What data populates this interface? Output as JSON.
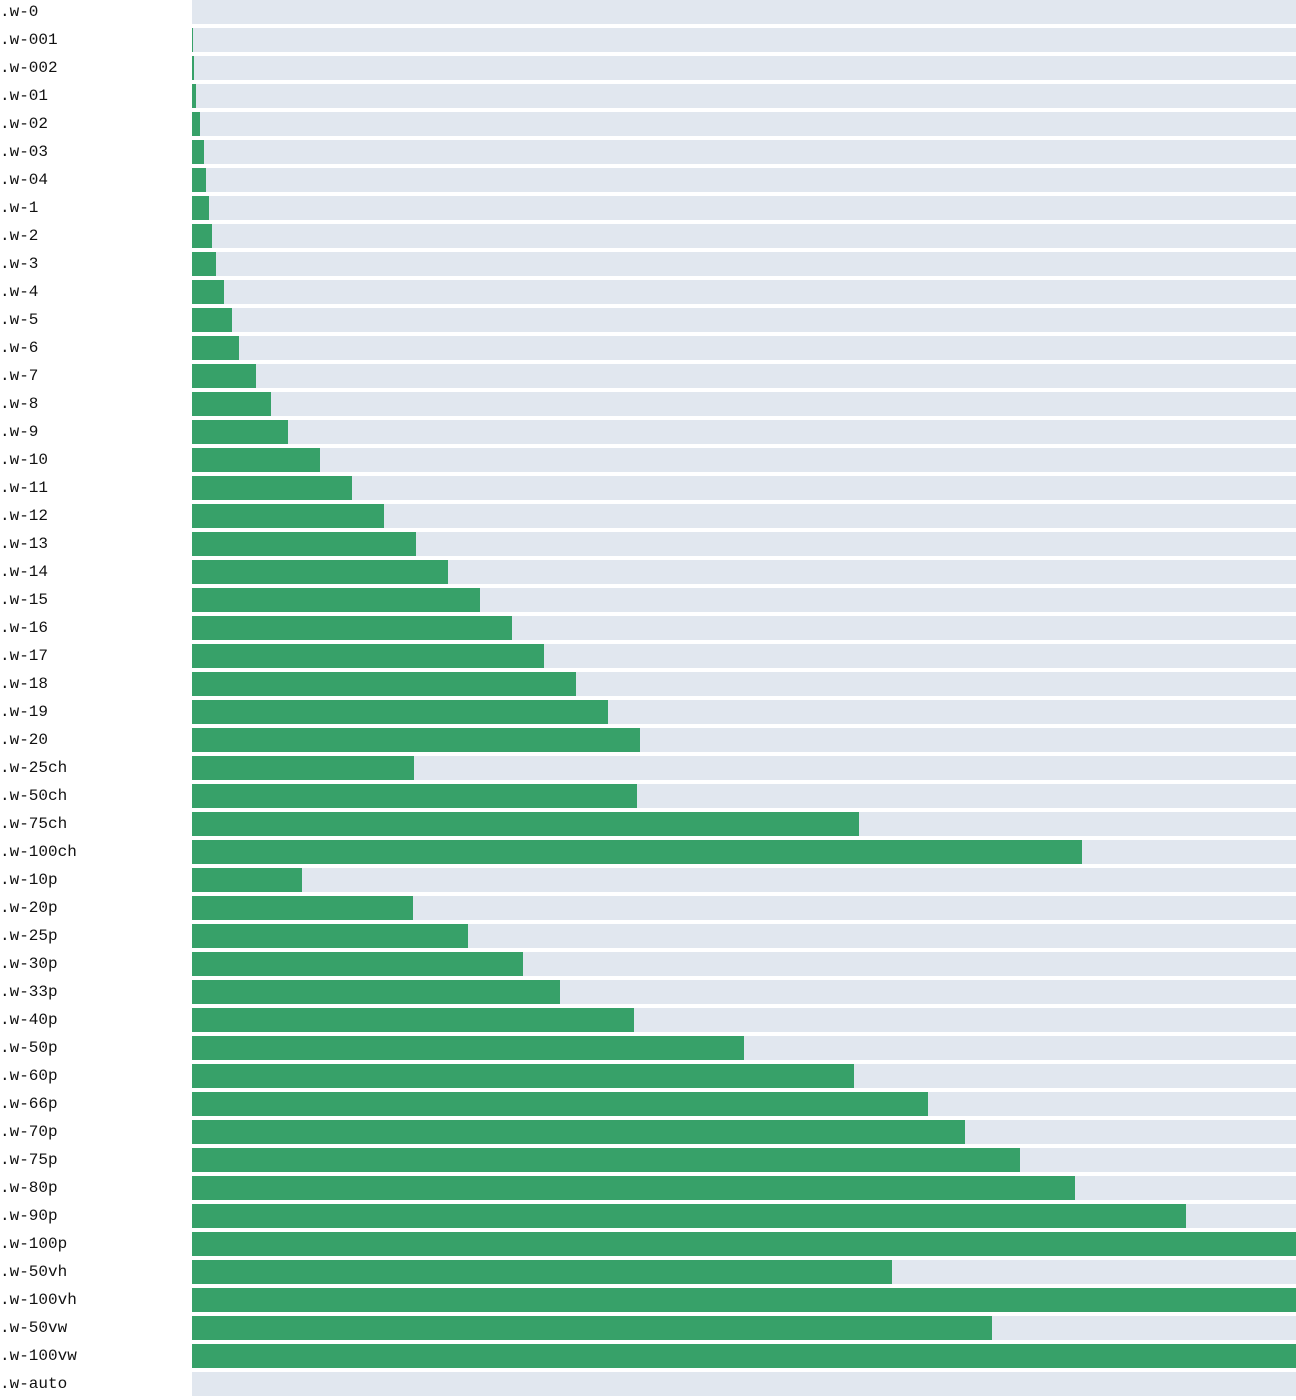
{
  "colors": {
    "track": "#e1e7ef",
    "fill": "#37a169",
    "label": "#111111"
  },
  "rows": [
    {
      "label": ".w-0",
      "fill_fraction": 0
    },
    {
      "label": ".w-001",
      "fill_fraction": 0.001
    },
    {
      "label": ".w-002",
      "fill_fraction": 0.002
    },
    {
      "label": ".w-01",
      "fill_fraction": 0.004
    },
    {
      "label": ".w-02",
      "fill_fraction": 0.007
    },
    {
      "label": ".w-03",
      "fill_fraction": 0.011
    },
    {
      "label": ".w-04",
      "fill_fraction": 0.013
    },
    {
      "label": ".w-1",
      "fill_fraction": 0.015
    },
    {
      "label": ".w-2",
      "fill_fraction": 0.018
    },
    {
      "label": ".w-3",
      "fill_fraction": 0.022
    },
    {
      "label": ".w-4",
      "fill_fraction": 0.029
    },
    {
      "label": ".w-5",
      "fill_fraction": 0.036
    },
    {
      "label": ".w-6",
      "fill_fraction": 0.043
    },
    {
      "label": ".w-7",
      "fill_fraction": 0.058
    },
    {
      "label": ".w-8",
      "fill_fraction": 0.072
    },
    {
      "label": ".w-9",
      "fill_fraction": 0.087
    },
    {
      "label": ".w-10",
      "fill_fraction": 0.116
    },
    {
      "label": ".w-11",
      "fill_fraction": 0.145
    },
    {
      "label": ".w-12",
      "fill_fraction": 0.174
    },
    {
      "label": ".w-13",
      "fill_fraction": 0.203
    },
    {
      "label": ".w-14",
      "fill_fraction": 0.232
    },
    {
      "label": ".w-15",
      "fill_fraction": 0.261
    },
    {
      "label": ".w-16",
      "fill_fraction": 0.29
    },
    {
      "label": ".w-17",
      "fill_fraction": 0.319
    },
    {
      "label": ".w-18",
      "fill_fraction": 0.348
    },
    {
      "label": ".w-19",
      "fill_fraction": 0.377
    },
    {
      "label": ".w-20",
      "fill_fraction": 0.406
    },
    {
      "label": ".w-25ch",
      "fill_fraction": 0.201
    },
    {
      "label": ".w-50ch",
      "fill_fraction": 0.403
    },
    {
      "label": ".w-75ch",
      "fill_fraction": 0.604
    },
    {
      "label": ".w-100ch",
      "fill_fraction": 0.806
    },
    {
      "label": ".w-10p",
      "fill_fraction": 0.1
    },
    {
      "label": ".w-20p",
      "fill_fraction": 0.2
    },
    {
      "label": ".w-25p",
      "fill_fraction": 0.25
    },
    {
      "label": ".w-30p",
      "fill_fraction": 0.3
    },
    {
      "label": ".w-33p",
      "fill_fraction": 0.333
    },
    {
      "label": ".w-40p",
      "fill_fraction": 0.4
    },
    {
      "label": ".w-50p",
      "fill_fraction": 0.5
    },
    {
      "label": ".w-60p",
      "fill_fraction": 0.6
    },
    {
      "label": ".w-66p",
      "fill_fraction": 0.667
    },
    {
      "label": ".w-70p",
      "fill_fraction": 0.7
    },
    {
      "label": ".w-75p",
      "fill_fraction": 0.75
    },
    {
      "label": ".w-80p",
      "fill_fraction": 0.8
    },
    {
      "label": ".w-90p",
      "fill_fraction": 0.9
    },
    {
      "label": ".w-100p",
      "fill_fraction": 1
    },
    {
      "label": ".w-50vh",
      "fill_fraction": 0.634
    },
    {
      "label": ".w-100vh",
      "fill_fraction": 1
    },
    {
      "label": ".w-50vw",
      "fill_fraction": 0.725
    },
    {
      "label": ".w-100vw",
      "fill_fraction": 1
    },
    {
      "label": ".w-auto",
      "fill_fraction": 0
    }
  ]
}
